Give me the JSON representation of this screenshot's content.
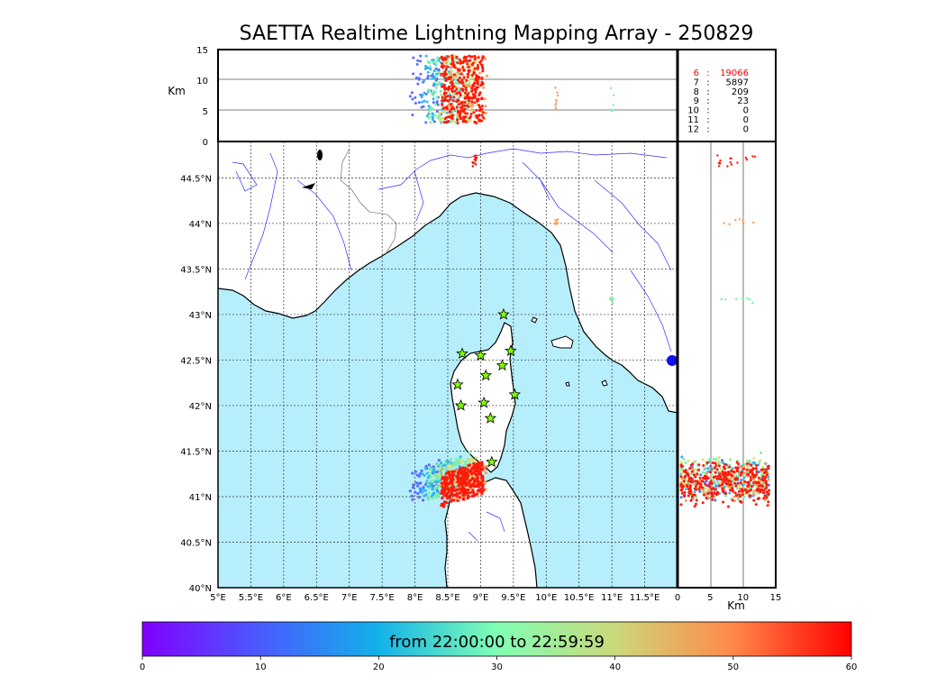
{
  "chart_data": {
    "type": "scatter",
    "title": "SAETTA Realtime Lightning Mapping Array - 250829",
    "map": {
      "lon_range": [
        5.0,
        12.0
      ],
      "lat_range": [
        40.0,
        44.9
      ],
      "lon_ticks": [
        "5°E",
        "5.5°E",
        "6°E",
        "6.5°E",
        "7°E",
        "7.5°E",
        "8°E",
        "8.5°E",
        "9°E",
        "9.5°E",
        "10°E",
        "10.5°E",
        "11°E",
        "11.5°E"
      ],
      "lat_ticks": [
        "40°N",
        "40.5°N",
        "41°N",
        "41.5°N",
        "42°N",
        "42.5°N",
        "43°N",
        "43.5°N",
        "44°N",
        "44.5°N"
      ],
      "grid": "dotted",
      "stations": [
        {
          "lon": 9.35,
          "lat": 43.0
        },
        {
          "lon": 8.72,
          "lat": 42.57
        },
        {
          "lon": 9.0,
          "lat": 42.55
        },
        {
          "lon": 9.46,
          "lat": 42.6
        },
        {
          "lon": 9.33,
          "lat": 42.44
        },
        {
          "lon": 9.08,
          "lat": 42.33
        },
        {
          "lon": 8.65,
          "lat": 42.23
        },
        {
          "lon": 9.52,
          "lat": 42.12
        },
        {
          "lon": 8.7,
          "lat": 42.0
        },
        {
          "lon": 9.05,
          "lat": 42.03
        },
        {
          "lon": 9.15,
          "lat": 41.86
        },
        {
          "lon": 9.17,
          "lat": 41.38
        }
      ]
    },
    "altitude_top_panel": {
      "ylabel": "Km",
      "y_ticks": [
        "0",
        "5",
        "10",
        "15"
      ],
      "ylim": [
        0,
        15
      ],
      "reference_lines_km": [
        5,
        10
      ]
    },
    "altitude_side_panel": {
      "xlabel": "Km",
      "x_ticks": [
        "0",
        "5",
        "10",
        "15"
      ],
      "xlim": [
        0,
        15
      ],
      "reference_lines_km": [
        5,
        10
      ]
    },
    "station_counts": [
      {
        "stations": "6",
        "count": "19066",
        "highlight": true
      },
      {
        "stations": "7",
        "count": "5897",
        "highlight": false
      },
      {
        "stations": "8",
        "count": "209",
        "highlight": false
      },
      {
        "stations": "9",
        "count": "23",
        "highlight": false
      },
      {
        "stations": "10",
        "count": "0",
        "highlight": false
      },
      {
        "stations": "11",
        "count": "0",
        "highlight": false
      },
      {
        "stations": "12",
        "count": "0",
        "highlight": false
      }
    ],
    "clusters": [
      {
        "lon_min": 7.9,
        "lon_max": 8.55,
        "lat_min": 40.9,
        "lat_max": 41.45,
        "color": "#5a6cff",
        "n": 60
      },
      {
        "lon_min": 8.1,
        "lon_max": 8.7,
        "lat_min": 40.95,
        "lat_max": 41.45,
        "color": "#2fb8f0",
        "n": 90
      },
      {
        "lon_min": 8.2,
        "lon_max": 8.85,
        "lat_min": 40.95,
        "lat_max": 41.5,
        "color": "#7df0a8",
        "n": 110
      },
      {
        "lon_min": 8.35,
        "lon_max": 8.95,
        "lat_min": 41.0,
        "lat_max": 41.45,
        "color": "#d8e07a",
        "n": 90
      },
      {
        "lon_min": 8.45,
        "lon_max": 9.1,
        "lat_min": 40.9,
        "lat_max": 41.4,
        "color": "#ff9a5a",
        "n": 80
      },
      {
        "lon_min": 8.4,
        "lon_max": 9.05,
        "lat_min": 40.88,
        "lat_max": 41.4,
        "color": "#ff1a0a",
        "n": 300
      }
    ],
    "colorbar": {
      "label": "from 22:00:00 to 22:59:59",
      "range": [
        0,
        60
      ],
      "ticks": [
        "0",
        "10",
        "20",
        "30",
        "40",
        "50",
        "60"
      ]
    }
  }
}
